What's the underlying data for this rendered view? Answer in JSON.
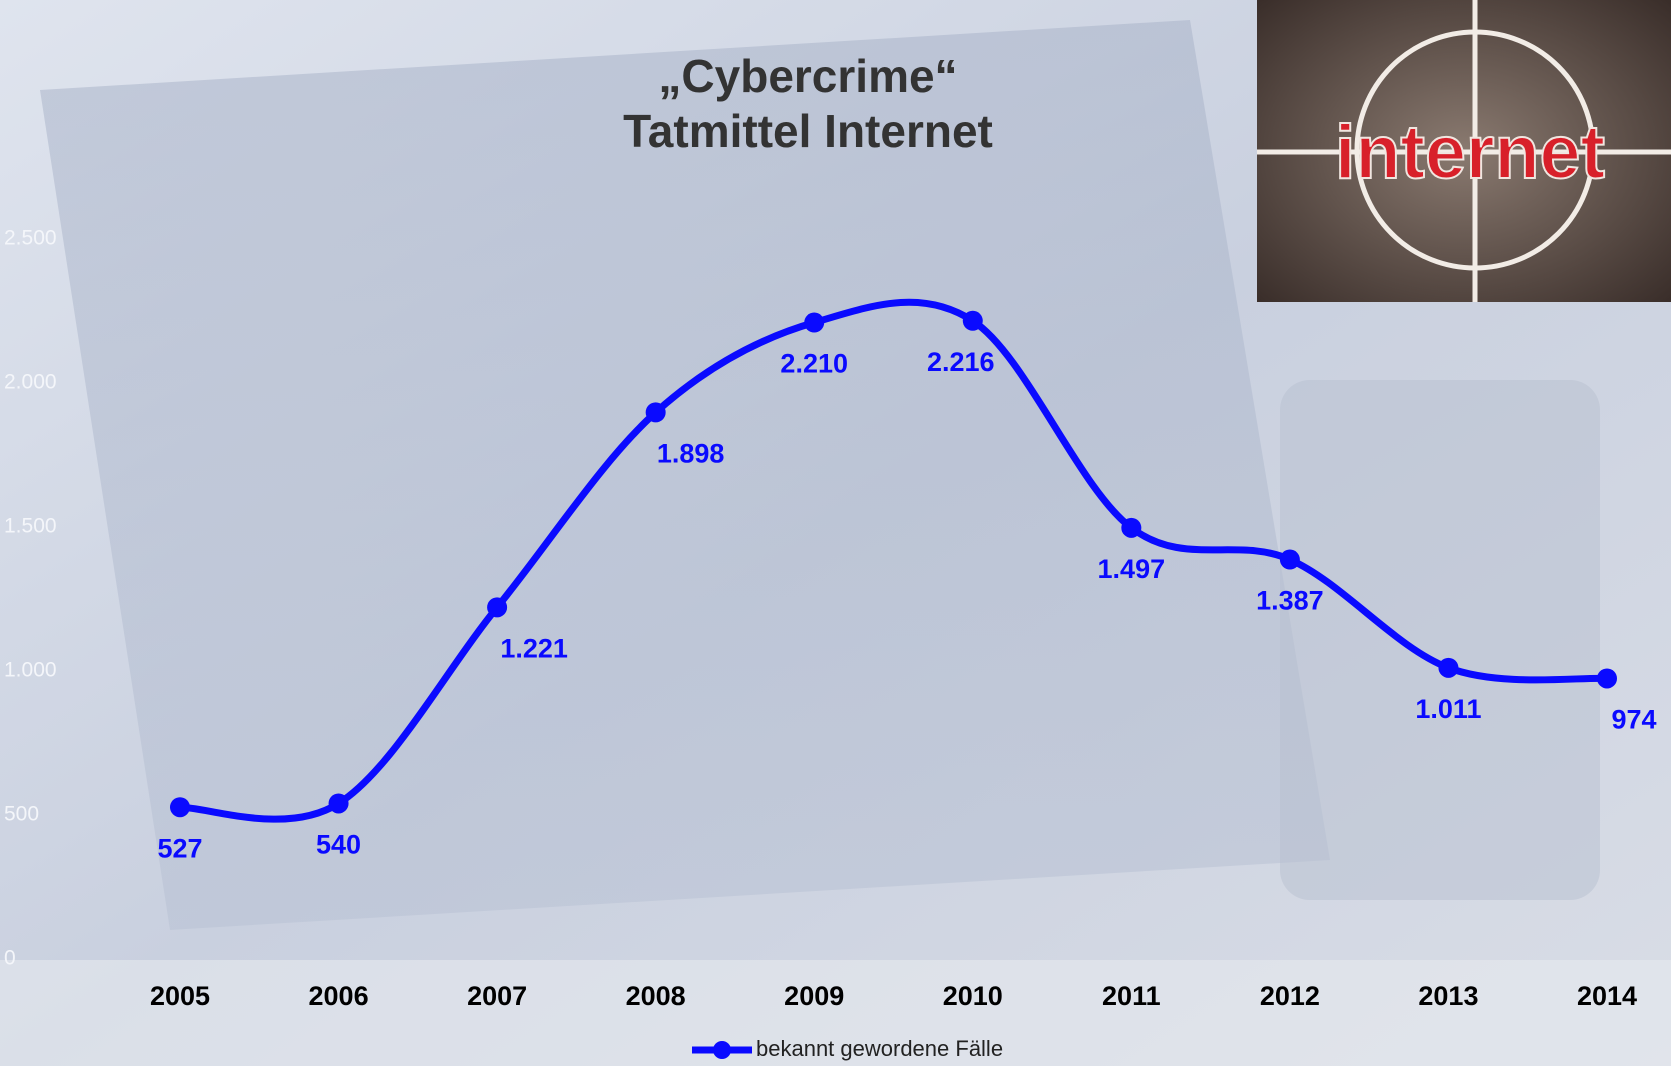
{
  "chart_data": {
    "type": "line",
    "title": "„Cybercrime“",
    "subtitle": "Tatmittel Internet",
    "annotations": [
      "internet"
    ],
    "categories": [
      "2005",
      "2006",
      "2007",
      "2008",
      "2009",
      "2010",
      "2011",
      "2012",
      "2013",
      "2014"
    ],
    "series": [
      {
        "name": "bekannt gewordene Fälle",
        "color": "#0a0aff",
        "values": [
          527,
          540,
          1221,
          1898,
          2210,
          2216,
          1497,
          1387,
          1011,
          974
        ],
        "value_labels": [
          "527",
          "540",
          "1.221",
          "1.898",
          "2.210",
          "2.216",
          "1.497",
          "1.387",
          "1.011",
          "974"
        ]
      }
    ],
    "ylim": [
      0,
      2500
    ],
    "yticks": [
      0,
      500,
      {
        "value": 1000,
        "label": "1.000"
      },
      {
        "value": 1500,
        "label": "1.500"
      },
      {
        "value": 2000,
        "label": "2.000"
      },
      {
        "value": 2500,
        "label": "2.500"
      }
    ],
    "grid": false,
    "smooth": true,
    "legend": "bottom"
  }
}
